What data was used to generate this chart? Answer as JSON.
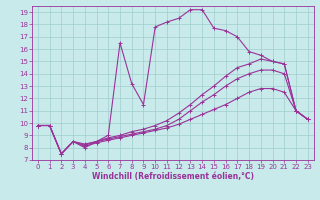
{
  "xlabel": "Windchill (Refroidissement éolien,°C)",
  "xlim": [
    -0.5,
    23.5
  ],
  "ylim": [
    7,
    19.5
  ],
  "xticks": [
    0,
    1,
    2,
    3,
    4,
    5,
    6,
    7,
    8,
    9,
    10,
    11,
    12,
    13,
    14,
    15,
    16,
    17,
    18,
    19,
    20,
    21,
    22,
    23
  ],
  "yticks": [
    7,
    8,
    9,
    10,
    11,
    12,
    13,
    14,
    15,
    16,
    17,
    18,
    19
  ],
  "background_color": "#c8eaea",
  "grid_color": "#a0cccc",
  "line_color": "#993399",
  "line1_y": [
    9.8,
    9.8,
    7.5,
    8.5,
    8.0,
    8.5,
    9.0,
    16.5,
    13.2,
    11.5,
    17.8,
    18.2,
    18.5,
    19.2,
    19.2,
    17.7,
    17.5,
    17.0,
    15.8,
    15.5,
    15.0,
    14.8,
    11.0,
    10.3
  ],
  "line2_y": [
    9.8,
    9.8,
    7.5,
    8.5,
    8.3,
    8.5,
    8.8,
    9.0,
    9.3,
    9.5,
    9.8,
    10.2,
    10.8,
    11.5,
    12.3,
    13.0,
    13.8,
    14.5,
    14.8,
    15.2,
    15.0,
    14.8,
    11.0,
    10.3
  ],
  "line3_y": [
    9.8,
    9.8,
    7.5,
    8.5,
    8.2,
    8.5,
    8.7,
    8.9,
    9.1,
    9.3,
    9.5,
    9.8,
    10.3,
    11.0,
    11.7,
    12.3,
    13.0,
    13.6,
    14.0,
    14.3,
    14.3,
    14.0,
    11.0,
    10.3
  ],
  "line4_y": [
    9.8,
    9.8,
    7.5,
    8.5,
    8.1,
    8.4,
    8.6,
    8.8,
    9.0,
    9.2,
    9.4,
    9.6,
    9.9,
    10.3,
    10.7,
    11.1,
    11.5,
    12.0,
    12.5,
    12.8,
    12.8,
    12.5,
    11.0,
    10.3
  ]
}
